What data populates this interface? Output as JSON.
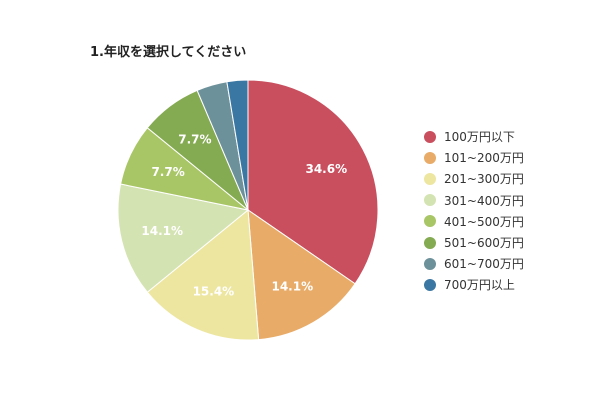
{
  "chart_data": {
    "type": "pie",
    "title": "1.年収を選択してください",
    "categories": [
      "100万円以下",
      "101~200万円",
      "201~300万円",
      "301~400万円",
      "401~500万円",
      "501~600万円",
      "601~700万円",
      "700万円以上"
    ],
    "values": [
      34.6,
      14.1,
      15.4,
      14.1,
      7.7,
      7.7,
      3.8,
      2.6
    ],
    "data_labels": [
      "34.6%",
      "14.1%",
      "15.4%",
      "14.1%",
      "7.7%",
      "7.7%",
      "",
      ""
    ],
    "colors": [
      "#c94f5f",
      "#e8ab68",
      "#ede6a1",
      "#d4e3b2",
      "#a9c667",
      "#84aa52",
      "#6d919a",
      "#3b77a3"
    ],
    "legend_position": "right",
    "label_color": "#ffffff",
    "start_angle": "12 o'clock, clockwise"
  }
}
